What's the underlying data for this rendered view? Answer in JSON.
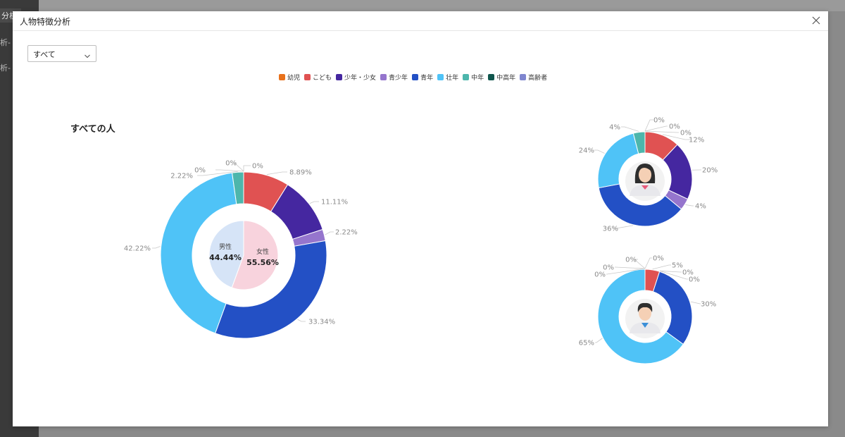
{
  "background": {
    "fragments": [
      "分析-",
      "析-",
      "析-"
    ]
  },
  "modal": {
    "title": "人物特徴分析",
    "close_icon": "close-icon"
  },
  "filter": {
    "selected": "すべて"
  },
  "colors": {
    "幼児": "#e8711c",
    "こども": "#e05252",
    "少年・少女": "#4527a0",
    "青少年": "#9575cd",
    "青年": "#2350c5",
    "壮年": "#4fc3f7",
    "中年": "#4db6ac",
    "中高年": "#10564d",
    "高齢者": "#7f86cf",
    "male_inner": "#d6e4f7",
    "female_inner": "#f8d3dd"
  },
  "legend": [
    "幼児",
    "こども",
    "少年・少女",
    "青少年",
    "青年",
    "壮年",
    "中年",
    "中高年",
    "高齢者"
  ],
  "section_title": "すべての人",
  "chart_data": [
    {
      "type": "pie",
      "name": "すべての人",
      "categories": [
        "幼児",
        "こども",
        "少年・少女",
        "青少年",
        "青年",
        "壮年",
        "中年",
        "中高年",
        "高齢者"
      ],
      "values": [
        0,
        8.89,
        11.11,
        2.22,
        33.34,
        42.22,
        2.22,
        0,
        0
      ],
      "labels": [
        "0%",
        "8.89%",
        "11.11%",
        "2.22%",
        "33.34%",
        "42.22%",
        "2.22%",
        "0%",
        "0%"
      ],
      "inner": {
        "type": "pie",
        "categories": [
          "男性",
          "女性"
        ],
        "values": [
          44.44,
          55.56
        ],
        "labels": [
          "44.44%",
          "55.56%"
        ]
      }
    },
    {
      "type": "pie",
      "name": "female",
      "avatar": "female-avatar-icon",
      "categories": [
        "幼児",
        "こども",
        "少年・少女",
        "青少年",
        "青年",
        "壮年",
        "中年",
        "中高年",
        "高齢者"
      ],
      "values": [
        0,
        12,
        20,
        4,
        36,
        24,
        4,
        0,
        0
      ],
      "labels": [
        "0%",
        "12%",
        "20%",
        "4%",
        "36%",
        "24%",
        "4%",
        "0%",
        "0%"
      ]
    },
    {
      "type": "pie",
      "name": "male",
      "avatar": "male-avatar-icon",
      "categories": [
        "幼児",
        "こども",
        "少年・少女",
        "青少年",
        "青年",
        "壮年",
        "中年",
        "中高年",
        "高齢者"
      ],
      "values": [
        0,
        5,
        0,
        0,
        30,
        65,
        0,
        0,
        0
      ],
      "labels": [
        "0%",
        "5%",
        "0%",
        "0%",
        "30%",
        "65%",
        "0%",
        "0%",
        "0%"
      ]
    }
  ]
}
